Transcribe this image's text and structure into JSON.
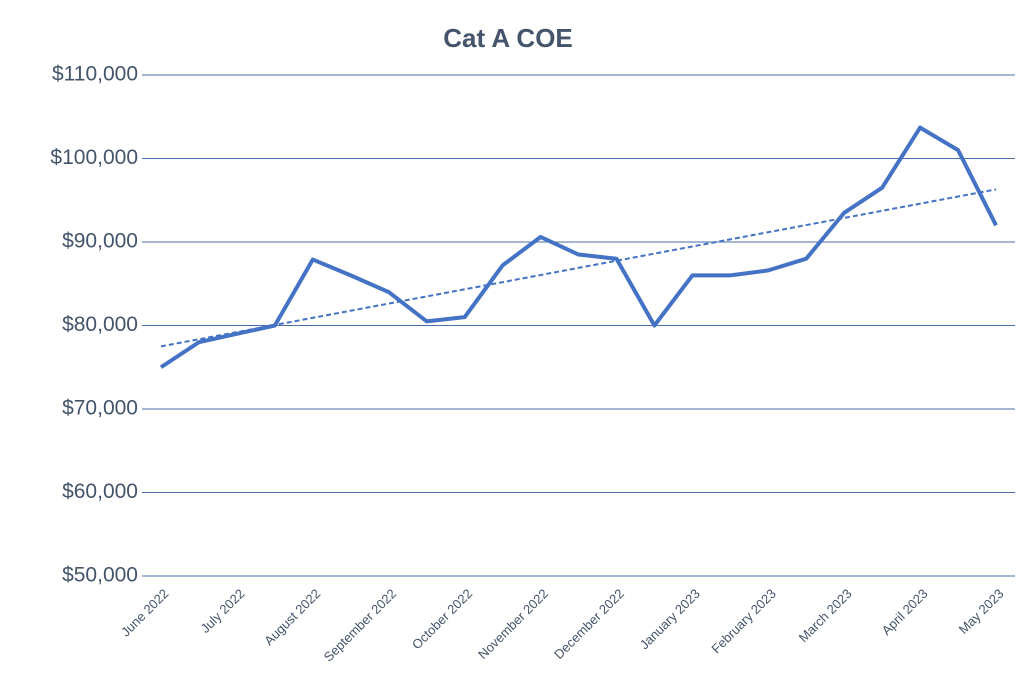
{
  "chart_data": {
    "type": "line",
    "title": "Cat A COE",
    "categories": [
      "June 2022",
      null,
      "July 2022",
      null,
      "August 2022",
      null,
      "September 2022",
      null,
      "October 2022",
      null,
      "November 2022",
      null,
      "December 2022",
      null,
      "January 2023",
      null,
      "February 2023",
      null,
      "March 2023",
      null,
      "April 2023",
      null,
      "May 2023"
    ],
    "series": [
      {
        "color": "#4472c4",
        "values": [
          75000,
          78000,
          79000,
          80000,
          87900,
          86000,
          84000,
          80500,
          81000,
          87200,
          90600,
          88500,
          88000,
          80000,
          86000,
          86000,
          86600,
          88000,
          93500,
          96500,
          103700,
          101000,
          92000
        ]
      }
    ],
    "trendline": [
      77500,
      96300
    ],
    "ylim": [
      50000,
      110000
    ],
    "yticks": [
      {
        "value": 50000,
        "label": "$50,000"
      },
      {
        "value": 60000,
        "label": "$60,000"
      },
      {
        "value": 70000,
        "label": "$70,000"
      },
      {
        "value": 80000,
        "label": "$80,000"
      },
      {
        "value": 90000,
        "label": "$90,000"
      },
      {
        "value": 100000,
        "label": "$100,000"
      },
      {
        "value": 110000,
        "label": "$110,000"
      }
    ],
    "grid": true
  }
}
